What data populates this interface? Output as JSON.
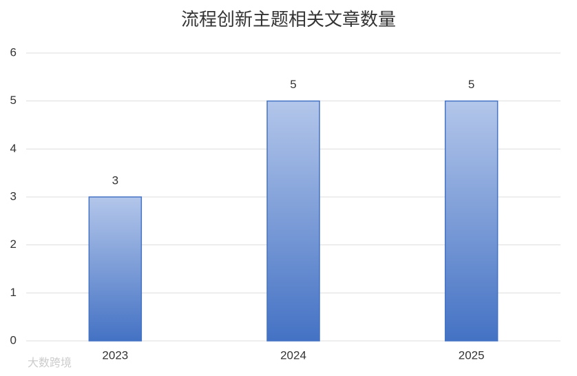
{
  "chart_data": {
    "type": "bar",
    "title": "流程创新主题相关文章数量",
    "categories": [
      "2023",
      "2024",
      "2025"
    ],
    "values": [
      3,
      5,
      5
    ],
    "color": "#4472c4",
    "ylim": [
      0,
      6
    ],
    "yticks": [
      0,
      1,
      2,
      3,
      4,
      5,
      6
    ],
    "grid": true
  },
  "watermark": "大数跨境"
}
